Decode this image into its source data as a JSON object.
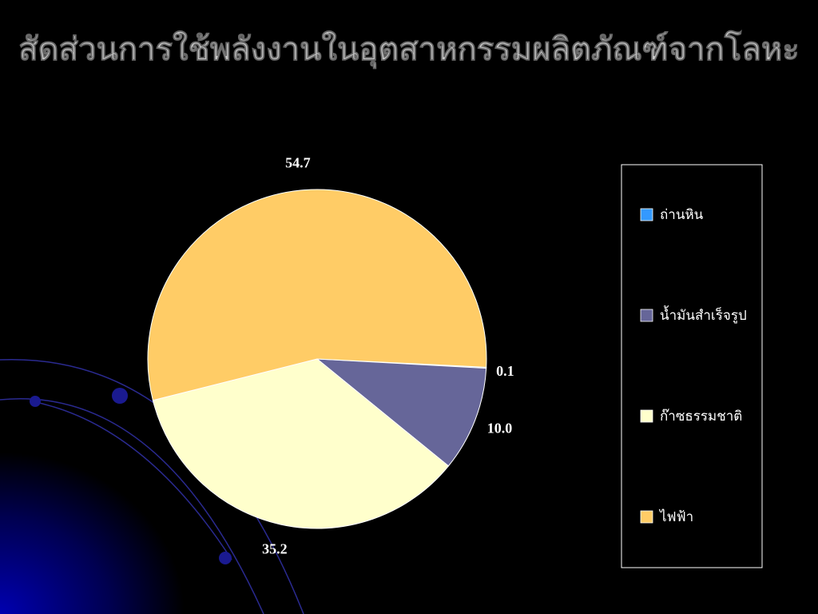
{
  "chart_data": {
    "type": "pie",
    "title": "สัดส่วนการใช้พลังงานในอุตสาหกรรมผลิตภัณฑ์จากโลหะ",
    "categories": [
      "ถ่านหิน",
      "น้ำมันสำเร็จรูป",
      "ก๊าซธรรมชาติ",
      "ไฟฟ้า"
    ],
    "values": [
      0.1,
      10.0,
      35.2,
      54.7
    ],
    "value_labels": [
      "0.1",
      "10.0",
      "35.2",
      "54.7"
    ],
    "colors": [
      "#3399ff",
      "#666699",
      "#ffffcc",
      "#ffcc66"
    ],
    "legend": "right"
  }
}
